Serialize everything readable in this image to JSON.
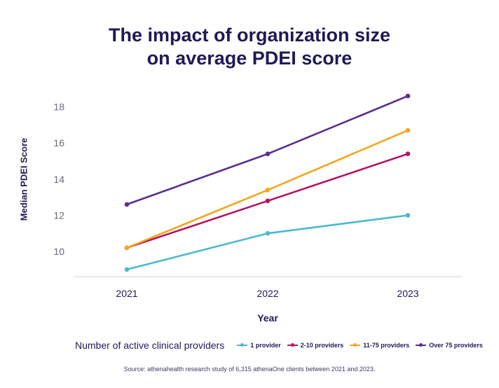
{
  "title_lines": [
    "The impact of organization size",
    "on average PDEI score"
  ],
  "source": "Source: athenahealth research study of 6,315 athenaOne clients between 2021 and 2023.",
  "legend_title": "Number of active clinical providers",
  "chart_data": {
    "type": "line",
    "title": "The impact of organization size on average PDEI score",
    "xlabel": "Year",
    "ylabel": "Median PDEI Score",
    "categories": [
      "2021",
      "2022",
      "2023"
    ],
    "y_ticks": [
      10,
      12,
      14,
      16,
      18
    ],
    "ylim": [
      9,
      18.6
    ],
    "grid": false,
    "legend_position": "bottom",
    "series": [
      {
        "name": "1 provider",
        "color": "#4ab9d0",
        "values": [
          9.0,
          11.0,
          12.0
        ]
      },
      {
        "name": "2-10 providers",
        "color": "#b5135f",
        "values": [
          10.2,
          12.8,
          15.4
        ]
      },
      {
        "name": "11-75 providers",
        "color": "#f5a61d",
        "values": [
          10.2,
          13.4,
          16.7
        ]
      },
      {
        "name": "Over 75 providers",
        "color": "#5a2d8e",
        "values": [
          12.6,
          15.4,
          18.6
        ]
      }
    ]
  }
}
